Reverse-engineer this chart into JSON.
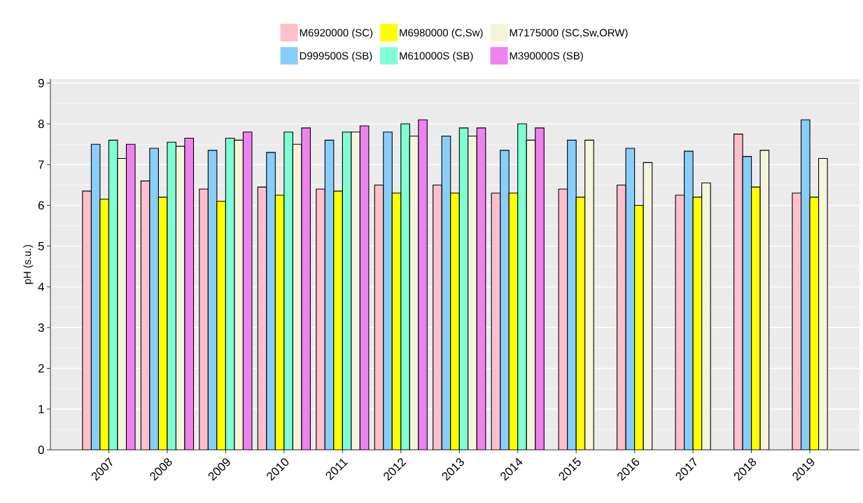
{
  "chart_data": {
    "type": "bar",
    "ylabel": "pH (s.u.)",
    "categories": [
      "2007",
      "2008",
      "2009",
      "2010",
      "2011",
      "2012",
      "2013",
      "2014",
      "2015",
      "2016",
      "2017",
      "2018",
      "2019"
    ],
    "series": [
      {
        "name": "M6920000 (SC)",
        "color": "#ffc0cb",
        "values": [
          6.35,
          6.6,
          6.4,
          6.45,
          6.4,
          6.5,
          6.5,
          6.3,
          6.4,
          6.5,
          6.25,
          7.75,
          6.3
        ]
      },
      {
        "name": "D999500S (SB)",
        "color": "#87cefa",
        "values": [
          7.5,
          7.4,
          7.35,
          7.3,
          7.6,
          7.8,
          7.7,
          7.35,
          7.6,
          7.4,
          7.33,
          7.2,
          8.1
        ]
      },
      {
        "name": "M6980000 (C,Sw)",
        "color": "#ffff00",
        "values": [
          6.15,
          6.2,
          6.1,
          6.25,
          6.35,
          6.3,
          6.3,
          6.3,
          6.2,
          6.0,
          6.2,
          6.45,
          6.2
        ]
      },
      {
        "name": "M610000S (SB)",
        "color": "#7fffd4",
        "values": [
          7.6,
          7.55,
          7.65,
          7.8,
          7.8,
          8.0,
          7.9,
          8.0,
          null,
          null,
          null,
          null,
          null
        ]
      },
      {
        "name": "M7175000 (SC,Sw,ORW)",
        "color": "#f5f5dc",
        "values": [
          7.15,
          7.45,
          7.6,
          7.5,
          7.8,
          7.7,
          7.7,
          7.6,
          7.6,
          7.05,
          6.55,
          7.35,
          7.15
        ]
      },
      {
        "name": "M390000S (SB)",
        "color": "#ee82ee",
        "values": [
          7.5,
          7.65,
          7.8,
          7.9,
          7.95,
          8.1,
          7.9,
          7.9,
          null,
          null,
          null,
          null,
          null
        ]
      }
    ],
    "ylim": [
      0,
      9.1
    ],
    "yticks": [
      0,
      1,
      2,
      3,
      4,
      5,
      6,
      7,
      8,
      9
    ],
    "grid": "y",
    "legend": "top"
  }
}
